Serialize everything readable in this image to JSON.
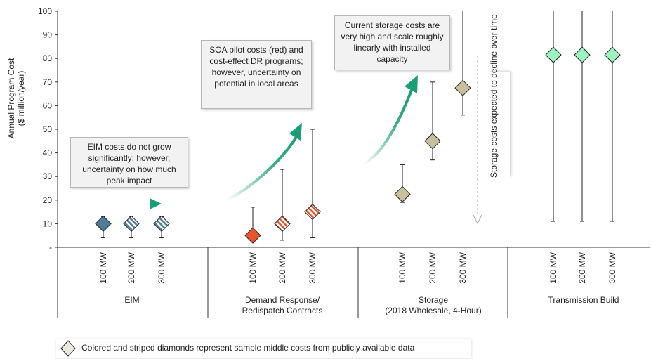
{
  "chart_data": {
    "type": "scatter",
    "ylabel": "Annual Program Cost\n($ million/year)",
    "ylim": [
      0,
      100
    ],
    "yticks": [
      100,
      90,
      80,
      70,
      60,
      50,
      40,
      30,
      20,
      10
    ],
    "yticks_zero_label": "-",
    "groups": [
      {
        "name": "EIM",
        "categories": [
          "100 MW",
          "200 MW",
          "300 MW"
        ],
        "values": [
          10,
          10,
          10
        ],
        "low": [
          4,
          4,
          4
        ],
        "high": [
          13,
          13,
          13
        ],
        "fill": [
          "solid",
          "striped",
          "striped"
        ],
        "color": "#4d7d99"
      },
      {
        "name": "Demand Response/\nRedispatch Contracts",
        "categories": [
          "100 MW",
          "200 MW",
          "300 MW"
        ],
        "values": [
          5,
          10,
          15
        ],
        "low": [
          3,
          3,
          4
        ],
        "high": [
          17,
          33,
          50
        ],
        "fill": [
          "solid",
          "striped",
          "striped"
        ],
        "color": "#e8542c"
      },
      {
        "name": "Storage\n(2018 Wholesale, 4-Hour)",
        "categories": [
          "100 MW",
          "200 MW",
          "300 MW"
        ],
        "values": [
          22.5,
          45,
          67.5
        ],
        "low": [
          19,
          37,
          56
        ],
        "high": [
          35,
          70,
          100
        ],
        "fill": [
          "solid",
          "solid",
          "solid"
        ],
        "color": "#c8c09c"
      },
      {
        "name": "Transmission Build",
        "categories": [
          "100 MW",
          "200 MW",
          "300 MW"
        ],
        "values": [
          81.5,
          81.5,
          81.5
        ],
        "low": [
          11,
          11,
          11
        ],
        "high": [
          100,
          100,
          100
        ],
        "fill": [
          "solid",
          "solid",
          "solid"
        ],
        "color": "#9cf5bf"
      }
    ],
    "annotations": [
      "EIM costs do not grow significantly; however, uncertainty on how much peak impact",
      "SOA pilot costs (red) and cost-effect DR programs; however, uncertainty on potential in local areas",
      "Current storage costs are very high and scale roughly linearly with installed capacity",
      "Storage costs expected to decline over time"
    ],
    "legend": "Colored and striped diamonds represent sample middle costs from publicly available data",
    "grid": false
  },
  "colors": {
    "arrow": "#1a9e75",
    "axis": "#333333",
    "errorbar": "#222222",
    "diamond_outline": "#222222",
    "legend_diamond": "#ece9df"
  },
  "notes": {
    "eim": "EIM costs do not grow significantly; however, uncertainty on how much peak impact",
    "dr": "SOA pilot costs (red) and cost-effect DR programs; however, uncertainty on potential in local areas",
    "storage": "Current storage costs are very high and scale roughly linearly with installed capacity",
    "decline": "Storage costs expected to decline over time"
  },
  "legend": {
    "text": "Colored and striped diamonds represent sample middle costs from publicly available data",
    "icon": "diamond-icon"
  }
}
